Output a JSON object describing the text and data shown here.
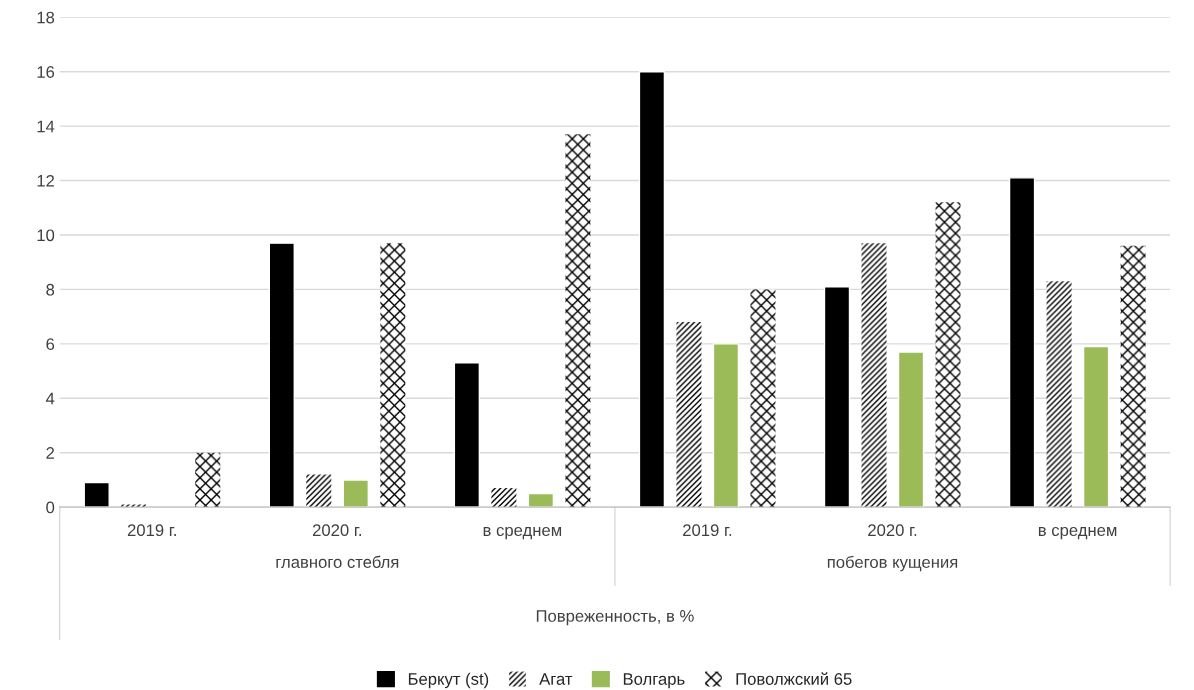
{
  "chart_data": {
    "type": "bar",
    "categories": [
      "2019 г.",
      "2020 г.",
      "в среднем",
      "2019 г.",
      "2020 г.",
      "в среднем"
    ],
    "xlabel": "Повреженность, в %",
    "annotations": [
      "главного стебля",
      "побегов кущения"
    ],
    "series": [
      {
        "name": "Беркут (st)",
        "color": "#000000",
        "values": [
          0.9,
          9.7,
          5.3,
          16.0,
          8.1,
          12.1
        ]
      },
      {
        "name": "Агат",
        "color": "#000000",
        "values": [
          0.1,
          1.2,
          0.7,
          6.8,
          9.7,
          8.3
        ]
      },
      {
        "name": "Волгарь",
        "color": "#9bbb59",
        "values": [
          null,
          1.0,
          0.5,
          6.0,
          5.7,
          5.9
        ]
      },
      {
        "name": "Поволжский 65",
        "color": "#000000",
        "values": [
          2.0,
          9.7,
          13.7,
          8.0,
          11.2,
          9.6
        ]
      }
    ],
    "ylim": [
      0,
      18
    ],
    "yticks": [
      0,
      2,
      4,
      6,
      8,
      10,
      12,
      14,
      16,
      18
    ],
    "grid": "y",
    "legend": "bottom"
  }
}
